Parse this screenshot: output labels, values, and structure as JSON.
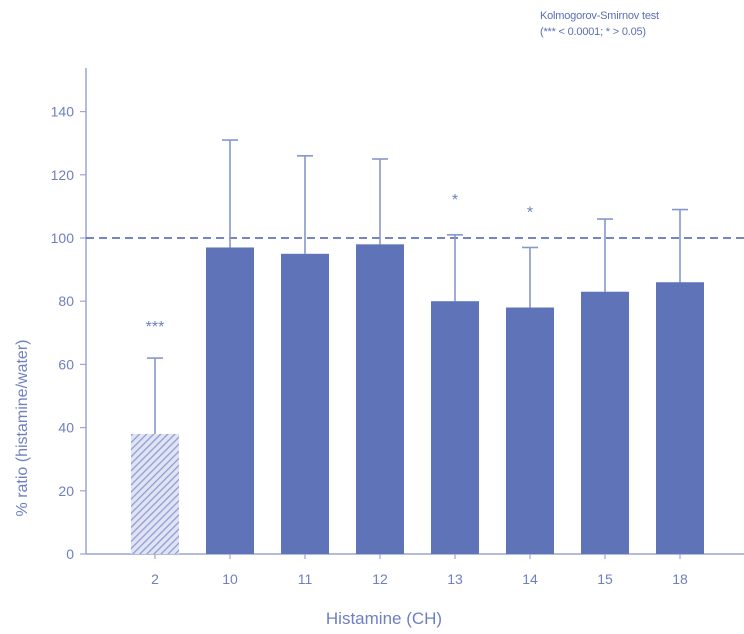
{
  "note": {
    "line1": "Kolmogorov-Smirnov test",
    "line2": "(*** < 0.0001; * > 0.05)"
  },
  "chart_data": {
    "type": "bar",
    "xlabel": "Histamine (CH)",
    "ylabel": "% ratio (histamine/water)",
    "ylim": [
      0,
      150
    ],
    "yticks": [
      0,
      20,
      40,
      60,
      80,
      100,
      120,
      140
    ],
    "categories": [
      "2",
      "10",
      "11",
      "12",
      "13",
      "14",
      "15",
      "18"
    ],
    "values": [
      38,
      97,
      95,
      98,
      80,
      78,
      83,
      86
    ],
    "error_upper": [
      62,
      131,
      126,
      125,
      101,
      97,
      106,
      109
    ],
    "significance": [
      "***",
      "",
      "",
      "",
      "*",
      "*",
      "",
      ""
    ],
    "bar_patterns": [
      "hatched",
      "solid",
      "solid",
      "solid",
      "solid",
      "solid",
      "solid",
      "solid"
    ],
    "reference_line": 100,
    "grid": false,
    "colors": {
      "bar": "#5e73b8",
      "hatched": "#8a99cf",
      "error": "#8796cd",
      "reference": "#4a5fab",
      "axis": "#9aa6d6",
      "text": "#6f7fc0"
    }
  }
}
